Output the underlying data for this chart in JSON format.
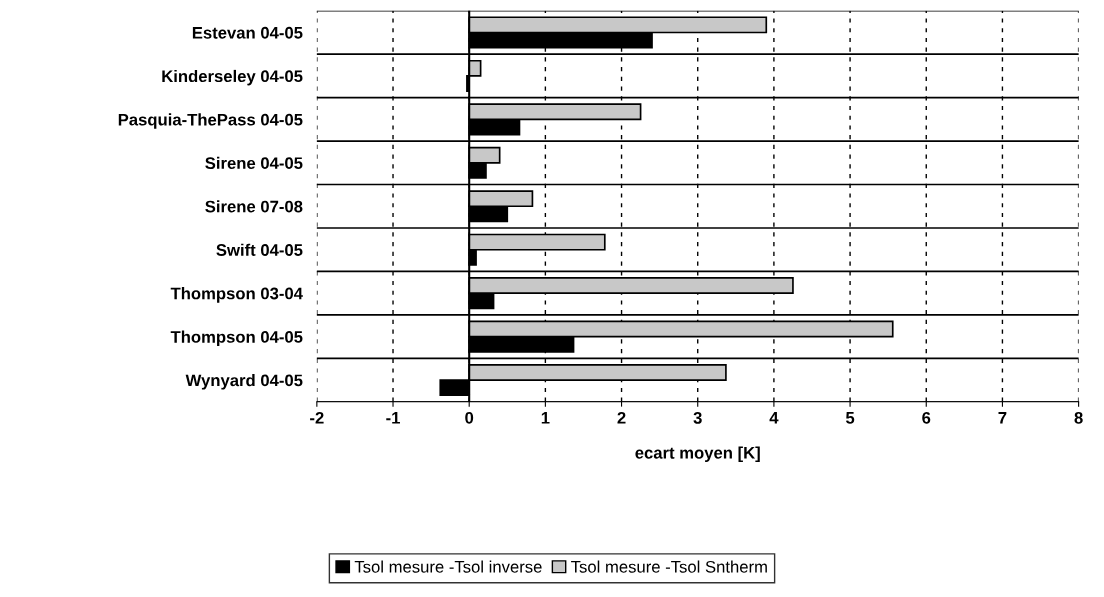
{
  "chart_data": {
    "type": "bar",
    "orientation": "horizontal",
    "xlabel": "ecart moyen [K]",
    "categories": [
      "Estevan 04-05",
      "Kinderseley 04-05",
      "Pasquia-ThePass 04-05",
      "Sirene 04-05",
      "Sirene 07-08",
      "Swift 04-05",
      "Thompson 03-04",
      "Thompson 04-05",
      "Wynyard 04-05"
    ],
    "series": [
      {
        "name": "Tsol mesure -Tsol inverse",
        "color": "#000000",
        "values": [
          2.4,
          -0.03,
          0.66,
          0.22,
          0.5,
          0.09,
          0.32,
          1.37,
          -0.38
        ]
      },
      {
        "name": "Tsol mesure -Tsol Sntherm",
        "color": "#c8c8c8",
        "values": [
          3.9,
          0.15,
          2.25,
          0.4,
          0.83,
          1.78,
          4.25,
          5.56,
          3.37
        ]
      }
    ],
    "xlim": [
      -2,
      8
    ],
    "xticks": [
      -2,
      -1,
      0,
      1,
      2,
      3,
      4,
      5,
      6,
      7,
      8
    ],
    "grid": true,
    "legend": "bottom"
  }
}
